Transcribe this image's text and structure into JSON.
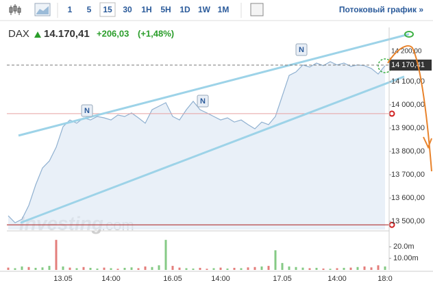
{
  "toolbar": {
    "intervals": [
      "1",
      "5",
      "15",
      "30",
      "1H",
      "5H",
      "1D",
      "1W",
      "1M"
    ],
    "stream_link": "Потоковый график »"
  },
  "header": {
    "symbol": "DAX",
    "price": "14.170,41",
    "change": "+206,03",
    "change_pct": "(+1,48%)"
  },
  "chart_data": {
    "type": "area",
    "watermark": [
      "Investing",
      ".com"
    ],
    "categories": [
      null,
      null,
      null,
      null,
      null,
      null,
      null,
      null,
      "13.05",
      null,
      null,
      null,
      null,
      null,
      null,
      "14:00",
      null,
      null,
      null,
      null,
      null,
      null,
      null,
      null,
      "16.05",
      null,
      null,
      null,
      null,
      null,
      null,
      "14:00",
      null,
      null,
      null,
      null,
      null,
      null,
      null,
      null,
      "17.05",
      null,
      null,
      null,
      null,
      null,
      null,
      null,
      "14:00",
      null,
      null,
      null,
      null,
      null,
      null,
      "18:0"
    ],
    "series": [
      {
        "name": "DAX",
        "color": "#8fb0d0",
        "values": [
          13524,
          13494,
          13509,
          13568,
          13656,
          13729,
          13759,
          13818,
          13906,
          13935,
          13921,
          13944,
          13935,
          13950,
          13944,
          13935,
          13956,
          13950,
          13965,
          13944,
          13921,
          13979,
          13994,
          14009,
          13950,
          13935,
          13979,
          14015,
          13979,
          13965,
          13950,
          13935,
          13944,
          13926,
          13935,
          13915,
          13897,
          13926,
          13915,
          13950,
          14038,
          14126,
          14141,
          14171,
          14162,
          14179,
          14168,
          14185,
          14171,
          14179,
          14165,
          14171,
          14168,
          14156,
          14132,
          14168
        ]
      }
    ],
    "ylim": [
      13465,
      14332
    ],
    "yticks": [
      {
        "value": 14200,
        "label": "14 200,00"
      },
      {
        "value": 14100,
        "label": "14 100,00"
      },
      {
        "value": 14000,
        "label": "14 000,00"
      },
      {
        "value": 13900,
        "label": "13 900,00"
      },
      {
        "value": 13800,
        "label": "13 800,00"
      },
      {
        "value": 13700,
        "label": "13 700,00"
      },
      {
        "value": 13600,
        "label": "13 600,00"
      },
      {
        "value": 13500,
        "label": "13 500,00"
      }
    ],
    "last_price": {
      "value": 14170.41,
      "label": "14 170,41"
    },
    "volume": [
      2000000,
      1500000,
      3000000,
      2500000,
      1800000,
      2200000,
      3500000,
      26000000,
      3000000,
      2000000,
      1500000,
      2500000,
      1800000,
      1200000,
      2000000,
      1500000,
      1000000,
      1800000,
      2200000,
      1500000,
      3000000,
      2500000,
      4000000,
      26000000,
      3500000,
      2000000,
      1500000,
      1200000,
      1800000,
      1000000,
      1500000,
      2000000,
      1200000,
      1800000,
      1500000,
      2200000,
      2500000,
      3000000,
      3500000,
      17000000,
      6000000,
      3000000,
      2500000,
      2000000,
      1500000,
      1800000,
      1200000,
      1000000,
      1500000,
      1800000,
      2000000,
      2500000,
      3000000,
      2200000,
      4000000,
      3000000
    ],
    "volume_colors": [
      "#d9534f",
      "#5cb85c",
      "#5cb85c",
      "#d9534f",
      "#5cb85c",
      "#5cb85c",
      "#5cb85c",
      "#d9534f",
      "#5cb85c",
      "#d9534f",
      "#5cb85c",
      "#d9534f",
      "#5cb85c",
      "#5cb85c",
      "#d9534f",
      "#5cb85c",
      "#d9534f",
      "#5cb85c",
      "#5cb85c",
      "#d9534f",
      "#d9534f",
      "#5cb85c",
      "#5cb85c",
      "#5cb85c",
      "#d9534f",
      "#d9534f",
      "#5cb85c",
      "#5cb85c",
      "#d9534f",
      "#d9534f",
      "#5cb85c",
      "#d9534f",
      "#5cb85c",
      "#d9534f",
      "#5cb85c",
      "#d9534f",
      "#d9534f",
      "#5cb85c",
      "#d9534f",
      "#5cb85c",
      "#5cb85c",
      "#5cb85c",
      "#5cb85c",
      "#5cb85c",
      "#d9534f",
      "#5cb85c",
      "#d9534f",
      "#5cb85c",
      "#d9534f",
      "#5cb85c",
      "#d9534f",
      "#5cb85c",
      "#d9534f",
      "#d9534f",
      "#d9534f",
      "#5cb85c"
    ],
    "volume_ylim": [
      0,
      32000000
    ],
    "volume_ticks": [
      {
        "value": 20000000,
        "label": "20.0m"
      },
      {
        "value": 10000000,
        "label": "10.00m"
      }
    ],
    "hlines": [
      13962,
      13485
    ],
    "channel": [
      {
        "x": [
          1.5,
          58.5
        ],
        "y": [
          13868,
          14303
        ]
      },
      {
        "x": [
          1.8,
          57.8
        ],
        "y": [
          13494,
          14121
        ]
      }
    ],
    "news": [
      "N",
      "N",
      "N"
    ]
  }
}
